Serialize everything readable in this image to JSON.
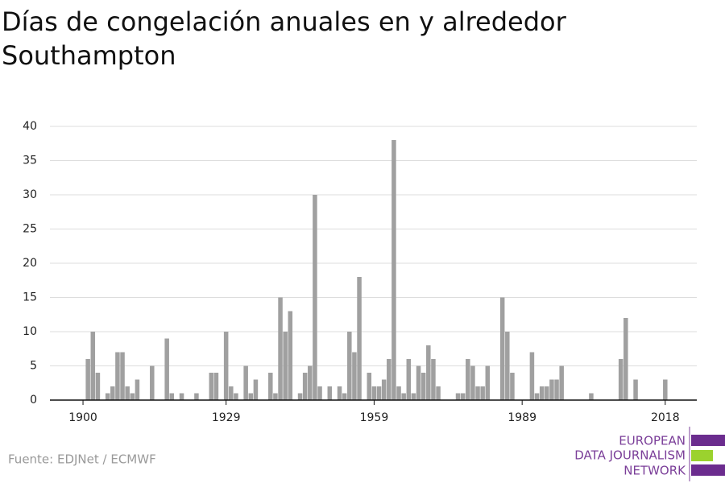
{
  "chart_data": {
    "type": "bar",
    "title": "Días de congelación anuales en y alrededor Southampton",
    "source": "Fuente: EDJNet / ECMWF",
    "logo_lines": [
      "EUROPEAN",
      "DATA JOURNALISM",
      "NETWORK"
    ],
    "color": "#a0a0a0",
    "x": [
      1900,
      1901,
      1902,
      1903,
      1904,
      1905,
      1906,
      1907,
      1908,
      1909,
      1910,
      1911,
      1912,
      1913,
      1914,
      1915,
      1916,
      1917,
      1918,
      1919,
      1920,
      1921,
      1922,
      1923,
      1924,
      1925,
      1926,
      1927,
      1928,
      1929,
      1930,
      1931,
      1932,
      1933,
      1934,
      1935,
      1936,
      1937,
      1938,
      1939,
      1940,
      1941,
      1942,
      1943,
      1944,
      1945,
      1946,
      1947,
      1948,
      1949,
      1950,
      1951,
      1952,
      1953,
      1954,
      1955,
      1956,
      1957,
      1958,
      1959,
      1960,
      1961,
      1962,
      1963,
      1964,
      1965,
      1966,
      1967,
      1968,
      1969,
      1970,
      1971,
      1972,
      1973,
      1974,
      1975,
      1976,
      1977,
      1978,
      1979,
      1980,
      1981,
      1982,
      1983,
      1984,
      1985,
      1986,
      1987,
      1988,
      1989,
      1990,
      1991,
      1992,
      1993,
      1994,
      1995,
      1996,
      1997,
      1998,
      1999,
      2000,
      2001,
      2002,
      2003,
      2004,
      2005,
      2006,
      2007,
      2008,
      2009,
      2010,
      2011,
      2012,
      2013,
      2014,
      2015,
      2016,
      2017,
      2018
    ],
    "values": [
      0,
      6,
      10,
      4,
      0,
      1,
      2,
      7,
      7,
      2,
      1,
      3,
      0,
      0,
      5,
      0,
      0,
      9,
      1,
      0,
      1,
      0,
      0,
      1,
      0,
      0,
      4,
      4,
      0,
      10,
      2,
      1,
      0,
      5,
      1,
      3,
      0,
      0,
      4,
      1,
      15,
      10,
      13,
      0,
      1,
      4,
      5,
      30,
      2,
      0,
      2,
      0,
      2,
      1,
      10,
      7,
      18,
      0,
      4,
      2,
      2,
      3,
      6,
      38,
      2,
      1,
      6,
      1,
      5,
      4,
      8,
      6,
      2,
      0,
      0,
      0,
      1,
      1,
      6,
      5,
      2,
      2,
      5,
      0,
      0,
      15,
      10,
      4,
      0,
      0,
      0,
      7,
      1,
      2,
      2,
      3,
      3,
      5,
      0,
      0,
      0,
      0,
      0,
      1,
      0,
      0,
      0,
      0,
      0,
      6,
      12,
      0,
      3,
      0,
      0,
      0,
      0,
      0,
      3
    ],
    "xlim": [
      1893.3,
      2024.4
    ],
    "xticks": [
      1900,
      1929,
      1959,
      1989,
      2018
    ],
    "ylim": [
      0,
      40
    ],
    "yticks": [
      0,
      5,
      10,
      15,
      20,
      25,
      30,
      35,
      40
    ],
    "grid": true
  }
}
